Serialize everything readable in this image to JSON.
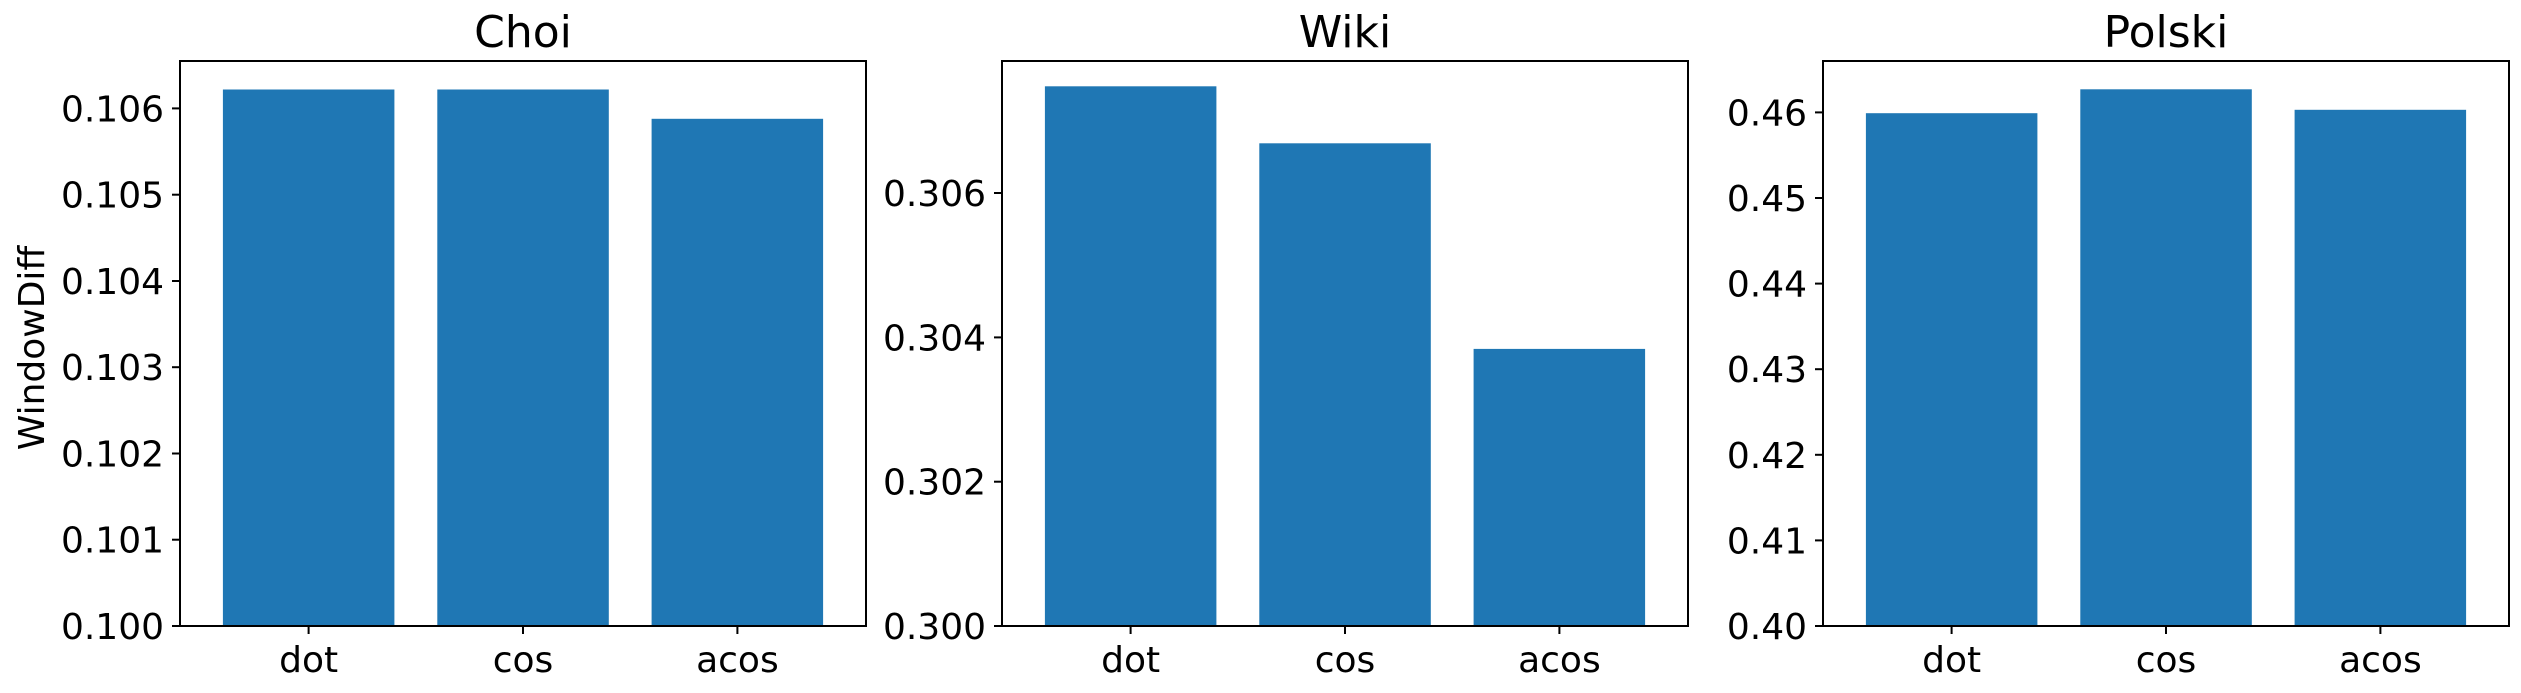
{
  "figure": {
    "ylabel": "WindowDiff",
    "bar_color": "#1f77b4"
  },
  "chart_data": [
    {
      "type": "bar",
      "title": "Choi",
      "categories": [
        "dot",
        "cos",
        "acos"
      ],
      "values": [
        0.10622,
        0.10622,
        0.10588
      ],
      "ylim": [
        0.1,
        0.10655
      ],
      "yticks": [
        0.1,
        0.101,
        0.102,
        0.103,
        0.104,
        0.105,
        0.106
      ],
      "ytick_labels": [
        "0.100",
        "0.101",
        "0.102",
        "0.103",
        "0.104",
        "0.105",
        "0.106"
      ],
      "xlabel": "",
      "ylabel": "WindowDiff",
      "grid": false,
      "legend": "none"
    },
    {
      "type": "bar",
      "title": "Wiki",
      "categories": [
        "dot",
        "cos",
        "acos"
      ],
      "values": [
        0.30748,
        0.30669,
        0.30384
      ],
      "ylim": [
        0.3,
        0.30783
      ],
      "yticks": [
        0.3,
        0.302,
        0.304,
        0.306
      ],
      "ytick_labels": [
        "0.300",
        "0.302",
        "0.304",
        "0.306"
      ],
      "xlabel": "",
      "ylabel": "",
      "grid": false,
      "legend": "none"
    },
    {
      "type": "bar",
      "title": "Polski",
      "categories": [
        "dot",
        "cos",
        "acos"
      ],
      "values": [
        0.4599,
        0.4627,
        0.4603
      ],
      "ylim": [
        0.4,
        0.466
      ],
      "yticks": [
        0.4,
        0.41,
        0.42,
        0.43,
        0.44,
        0.45,
        0.46
      ],
      "ytick_labels": [
        "0.40",
        "0.41",
        "0.42",
        "0.43",
        "0.44",
        "0.45",
        "0.46"
      ],
      "xlabel": "",
      "ylabel": "",
      "grid": false,
      "legend": "none"
    }
  ]
}
